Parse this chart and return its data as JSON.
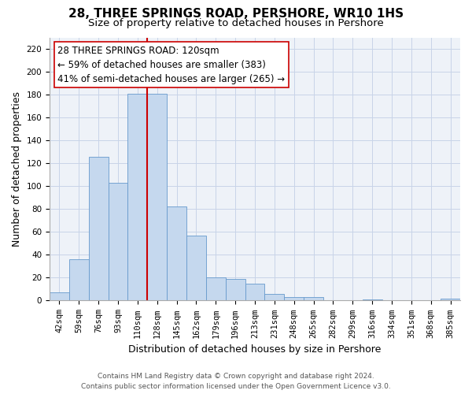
{
  "title": "28, THREE SPRINGS ROAD, PERSHORE, WR10 1HS",
  "subtitle": "Size of property relative to detached houses in Pershore",
  "xlabel": "Distribution of detached houses by size in Pershore",
  "ylabel": "Number of detached properties",
  "bar_labels": [
    "42sqm",
    "59sqm",
    "76sqm",
    "93sqm",
    "110sqm",
    "128sqm",
    "145sqm",
    "162sqm",
    "179sqm",
    "196sqm",
    "213sqm",
    "231sqm",
    "248sqm",
    "265sqm",
    "282sqm",
    "299sqm",
    "316sqm",
    "334sqm",
    "351sqm",
    "368sqm",
    "385sqm"
  ],
  "bar_values": [
    7,
    36,
    126,
    103,
    181,
    181,
    82,
    57,
    20,
    19,
    15,
    6,
    3,
    3,
    0,
    0,
    1,
    0,
    0,
    0,
    2
  ],
  "bar_color": "#c5d8ee",
  "bar_edge_color": "#6699cc",
  "vline_color": "#cc0000",
  "vline_pos": 5.0,
  "ylim": [
    0,
    230
  ],
  "yticks": [
    0,
    20,
    40,
    60,
    80,
    100,
    120,
    140,
    160,
    180,
    200,
    220
  ],
  "annotation_title": "28 THREE SPRINGS ROAD: 120sqm",
  "annotation_line1": "← 59% of detached houses are smaller (383)",
  "annotation_line2": "41% of semi-detached houses are larger (265) →",
  "footer_line1": "Contains HM Land Registry data © Crown copyright and database right 2024.",
  "footer_line2": "Contains public sector information licensed under the Open Government Licence v3.0.",
  "title_fontsize": 11,
  "subtitle_fontsize": 9.5,
  "ylabel_fontsize": 9,
  "xlabel_fontsize": 9,
  "tick_fontsize": 7.5,
  "annotation_fontsize": 8.5,
  "footer_fontsize": 6.5,
  "grid_color": "#c8d4e8",
  "bg_color": "#eef2f8"
}
